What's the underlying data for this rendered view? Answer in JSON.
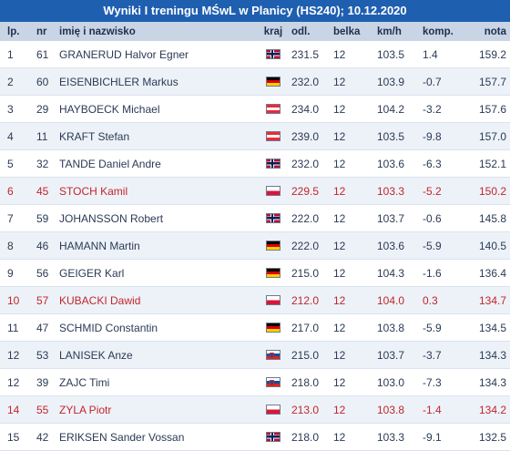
{
  "title": "Wyniki I treningu MŚwL w Planicy (HS240); 10.12.2020",
  "columns": {
    "lp": "lp.",
    "nr": "nr",
    "name": "imię i nazwisko",
    "kraj": "kraj",
    "odl": "odl.",
    "belka": "belka",
    "kmh": "km/h",
    "komp": "komp.",
    "nota": "nota"
  },
  "colors": {
    "title_bg": "#1f5fb0",
    "header_bg": "#c9d4e5",
    "highlight_text": "#c0262d",
    "row_even_bg": "#edf2f8"
  },
  "rows": [
    {
      "lp": "1",
      "nr": "61",
      "name": "GRANERUD Halvor Egner",
      "country": "NOR",
      "flag_icon": "norway-flag-icon",
      "odl": "231.5",
      "belka": "12",
      "kmh": "103.5",
      "komp": "1.4",
      "nota": "159.2",
      "highlight": false
    },
    {
      "lp": "2",
      "nr": "60",
      "name": "EISENBICHLER Markus",
      "country": "GER",
      "flag_icon": "germany-flag-icon",
      "odl": "232.0",
      "belka": "12",
      "kmh": "103.9",
      "komp": "-0.7",
      "nota": "157.7",
      "highlight": false
    },
    {
      "lp": "3",
      "nr": "29",
      "name": "HAYBOECK Michael",
      "country": "AUT",
      "flag_icon": "austria-flag-icon",
      "odl": "234.0",
      "belka": "12",
      "kmh": "104.2",
      "komp": "-3.2",
      "nota": "157.6",
      "highlight": false
    },
    {
      "lp": "4",
      "nr": "11",
      "name": "KRAFT Stefan",
      "country": "AUT",
      "flag_icon": "austria-flag-icon",
      "odl": "239.0",
      "belka": "12",
      "kmh": "103.5",
      "komp": "-9.8",
      "nota": "157.0",
      "highlight": false
    },
    {
      "lp": "5",
      "nr": "32",
      "name": "TANDE Daniel Andre",
      "country": "NOR",
      "flag_icon": "norway-flag-icon",
      "odl": "232.0",
      "belka": "12",
      "kmh": "103.6",
      "komp": "-6.3",
      "nota": "152.1",
      "highlight": false
    },
    {
      "lp": "6",
      "nr": "45",
      "name": "STOCH Kamil",
      "country": "POL",
      "flag_icon": "poland-flag-icon",
      "odl": "229.5",
      "belka": "12",
      "kmh": "103.3",
      "komp": "-5.2",
      "nota": "150.2",
      "highlight": true
    },
    {
      "lp": "7",
      "nr": "59",
      "name": "JOHANSSON Robert",
      "country": "NOR",
      "flag_icon": "norway-flag-icon",
      "odl": "222.0",
      "belka": "12",
      "kmh": "103.7",
      "komp": "-0.6",
      "nota": "145.8",
      "highlight": false
    },
    {
      "lp": "8",
      "nr": "46",
      "name": "HAMANN Martin",
      "country": "GER",
      "flag_icon": "germany-flag-icon",
      "odl": "222.0",
      "belka": "12",
      "kmh": "103.6",
      "komp": "-5.9",
      "nota": "140.5",
      "highlight": false
    },
    {
      "lp": "9",
      "nr": "56",
      "name": "GEIGER Karl",
      "country": "GER",
      "flag_icon": "germany-flag-icon",
      "odl": "215.0",
      "belka": "12",
      "kmh": "104.3",
      "komp": "-1.6",
      "nota": "136.4",
      "highlight": false
    },
    {
      "lp": "10",
      "nr": "57",
      "name": "KUBACKI Dawid",
      "country": "POL",
      "flag_icon": "poland-flag-icon",
      "odl": "212.0",
      "belka": "12",
      "kmh": "104.0",
      "komp": "0.3",
      "nota": "134.7",
      "highlight": true
    },
    {
      "lp": "11",
      "nr": "47",
      "name": "SCHMID Constantin",
      "country": "GER",
      "flag_icon": "germany-flag-icon",
      "odl": "217.0",
      "belka": "12",
      "kmh": "103.8",
      "komp": "-5.9",
      "nota": "134.5",
      "highlight": false
    },
    {
      "lp": "12",
      "nr": "53",
      "name": "LANISEK Anze",
      "country": "SLO",
      "flag_icon": "slovenia-flag-icon",
      "odl": "215.0",
      "belka": "12",
      "kmh": "103.7",
      "komp": "-3.7",
      "nota": "134.3",
      "highlight": false
    },
    {
      "lp": "12",
      "nr": "39",
      "name": "ZAJC Timi",
      "country": "SLO",
      "flag_icon": "slovenia-flag-icon",
      "odl": "218.0",
      "belka": "12",
      "kmh": "103.0",
      "komp": "-7.3",
      "nota": "134.3",
      "highlight": false
    },
    {
      "lp": "14",
      "nr": "55",
      "name": "ZYLA Piotr",
      "country": "POL",
      "flag_icon": "poland-flag-icon",
      "odl": "213.0",
      "belka": "12",
      "kmh": "103.8",
      "komp": "-1.4",
      "nota": "134.2",
      "highlight": true
    },
    {
      "lp": "15",
      "nr": "42",
      "name": "ERIKSEN Sander Vossan",
      "country": "NOR",
      "flag_icon": "norway-flag-icon",
      "odl": "218.0",
      "belka": "12",
      "kmh": "103.3",
      "komp": "-9.1",
      "nota": "132.5",
      "highlight": false
    }
  ]
}
